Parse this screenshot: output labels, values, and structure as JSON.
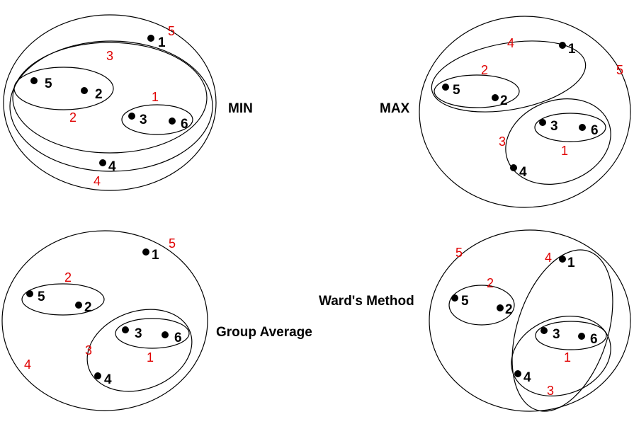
{
  "colors": {
    "order": "#e00000",
    "point": "#000000"
  },
  "panels": {
    "min": {
      "title": "MIN",
      "points": {
        "p1": "1",
        "p2": "2",
        "p3": "3",
        "p4": "4",
        "p5": "5",
        "p6": "6"
      },
      "merge_order": {
        "m1": "1",
        "m2": "2",
        "m3": "3",
        "m4": "4",
        "m5": "5"
      }
    },
    "max": {
      "title": "MAX",
      "points": {
        "p1": "1",
        "p2": "2",
        "p3": "3",
        "p4": "4",
        "p5": "5",
        "p6": "6"
      },
      "merge_order": {
        "m1": "1",
        "m2": "2",
        "m3": "3",
        "m4": "4",
        "m5": "5"
      }
    },
    "group_average": {
      "title": "Group Average",
      "points": {
        "p1": "1",
        "p2": "2",
        "p3": "3",
        "p4": "4",
        "p5": "5",
        "p6": "6"
      },
      "merge_order": {
        "m1": "1",
        "m2": "2",
        "m3": "3",
        "m4": "4",
        "m5": "5"
      }
    },
    "ward": {
      "title": "Ward's Method",
      "points": {
        "p1": "1",
        "p2": "2",
        "p3": "3",
        "p4": "4",
        "p5": "5",
        "p6": "6"
      },
      "merge_order": {
        "m1": "1",
        "m2": "2",
        "m3": "3",
        "m4": "4",
        "m5": "5"
      }
    }
  }
}
